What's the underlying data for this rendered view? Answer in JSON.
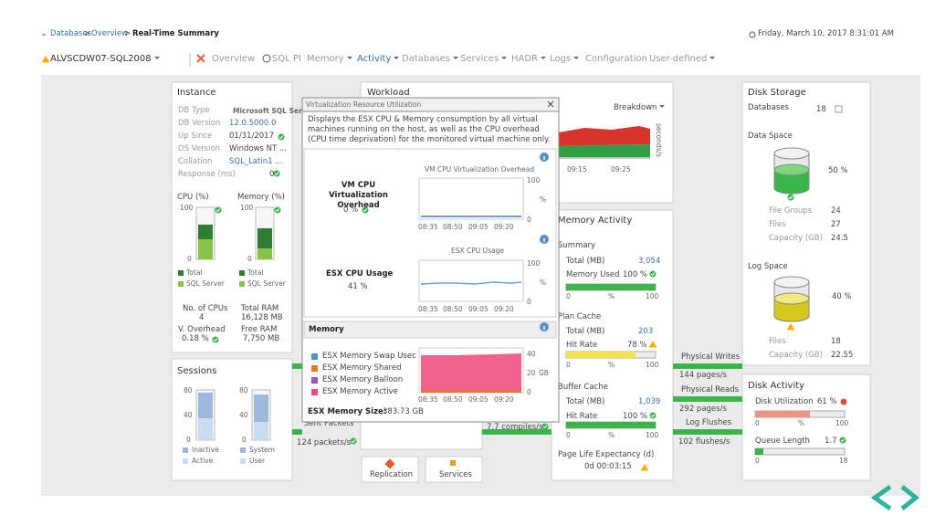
{
  "header": {
    "breadcrumb": [
      "Databases",
      "Overview",
      "Real-Time Summary"
    ],
    "separator": ">",
    "timestamp": "Friday, March 10, 2017 8:31:01 AM"
  },
  "instance_selector": "ALVSCDW07-SQL2008",
  "nav": [
    "Overview",
    "SQL PI",
    "Memory",
    "Activity",
    "Databases",
    "Services",
    "HADR",
    "Logs",
    "Configuration",
    "User-defined"
  ],
  "instance": {
    "title": "Instance",
    "rows": [
      [
        "DB Type",
        "Microsoft SQL Server"
      ],
      [
        "DB Version",
        "12.0.5000.0"
      ],
      [
        "Up Since",
        "01/31/2017"
      ],
      [
        "OS Version",
        "Windows NT ..."
      ],
      [
        "Collation",
        "SQL_Latin1 ..."
      ],
      [
        "Response (ms)",
        "0"
      ]
    ],
    "cpu_chart": {
      "title": "CPU (%)",
      "ticks": [
        "100",
        "0"
      ],
      "legend": [
        "Total",
        "SQL Server"
      ]
    },
    "memory_chart": {
      "title": "Memory (%)",
      "ticks": [
        "100",
        "0"
      ],
      "legend": [
        "Total",
        "SQL Server"
      ]
    },
    "stats": [
      [
        "No. of CPUs",
        "4"
      ],
      [
        "Total RAM",
        "16,128 MB"
      ],
      [
        "V. Overhead",
        "0.18 %"
      ],
      [
        "Free RAM",
        "7,750 MB"
      ]
    ]
  },
  "sessions": {
    "title": "Sessions",
    "left_chart": {
      "ticks": [
        "80",
        "40",
        "0"
      ],
      "legend": [
        "Inactive",
        "Active"
      ]
    },
    "right_chart": {
      "ticks": [
        "80",
        "40",
        "0"
      ],
      "legend": [
        "System",
        "User"
      ]
    }
  },
  "workload": {
    "title": "Workload",
    "menu": "Breakdown",
    "x_labels": [
      "09:15",
      "09:25"
    ],
    "y_unit": "seconds/s"
  },
  "network": {
    "sent_label": "Sent Packets",
    "sent_value": "124 packets/s",
    "compiles": "7.7 compiles/s"
  },
  "buttons": [
    "Replication",
    "Services"
  ],
  "popup": {
    "title": "Virtualization Resource Utilization",
    "description": "Displays the ESX CPU & Memory consumption by all virtual machines running on the host, as well as the CPU overhead (CPU time deprivation) for the monitored virtual machine only.",
    "vm_cpu": {
      "label": "VM CPU Virtualization Overhead",
      "value": "0 %",
      "chart_title": "VM CPU Virtualization Overhead",
      "ticks": [
        "100",
        "0"
      ],
      "unit": "%",
      "x_labels": [
        "08:35",
        "08:50",
        "09:05",
        "09:20"
      ]
    },
    "esx_cpu": {
      "label": "ESX CPU Usage",
      "value": "41 %",
      "chart_title": "ESX CPU Usage",
      "ticks": [
        "100",
        "0"
      ],
      "unit": "%",
      "x_labels": [
        "08:35",
        "08:50",
        "09:05",
        "09:20"
      ]
    },
    "memory": {
      "title": "Memory",
      "legend": [
        "ESX Memory Swap Usec",
        "ESX Memory Shared",
        "ESX Memory Balloon",
        "ESX Memory Active"
      ],
      "ticks": [
        "40",
        "20",
        "0"
      ],
      "unit": "GB",
      "x_labels": [
        "08:35",
        "08:50",
        "09:05",
        "09:20"
      ],
      "size_label": "ESX Memory Size:",
      "size_value": "383.73 GB"
    }
  },
  "memory_activity": {
    "title": "Memory Activity",
    "summary": {
      "title": "Summary",
      "rows": [
        [
          "Total (MB)",
          "3,054"
        ],
        [
          "Memory Used",
          "100 %"
        ]
      ],
      "axis": [
        "0",
        "%",
        "100"
      ]
    },
    "plan_cache": {
      "title": "Plan Cache",
      "rows": [
        [
          "Total (MB)",
          "203"
        ],
        [
          "Hit Rate",
          "78 %"
        ]
      ],
      "axis": [
        "0",
        "%",
        "100"
      ]
    },
    "buffer_cache": {
      "title": "Buffer Cache",
      "rows": [
        [
          "Total (MB)",
          "1,039"
        ],
        [
          "Hit Rate",
          "100 %"
        ]
      ],
      "axis": [
        "0",
        "%",
        "100"
      ]
    },
    "ple": {
      "label": "Page Life Expectancy (d)",
      "value": "0d 00:03:15"
    }
  },
  "disk_io": [
    [
      "Physical Writes",
      "144 pages/s"
    ],
    [
      "Physical Reads",
      "292 pages/s"
    ],
    [
      "Log Flushes",
      "102 flushes/s"
    ]
  ],
  "disk_storage": {
    "title": "Disk Storage",
    "databases": [
      "Databases",
      "18"
    ],
    "data_space": {
      "title": "Data Space",
      "percent": "50 %",
      "rows": [
        [
          "File Groups",
          "24"
        ],
        [
          "Files",
          "27"
        ],
        [
          "Capacity (GB)",
          "24.5"
        ]
      ]
    },
    "log_space": {
      "title": "Log Space",
      "percent": "40 %",
      "rows": [
        [
          "Files",
          "18"
        ],
        [
          "Capacity (GB)",
          "22.55"
        ]
      ]
    }
  },
  "disk_activity": {
    "title": "Disk Activity",
    "utilization": [
      "Disk Utilization",
      "61 %"
    ],
    "util_axis": [
      "0",
      "%",
      "100"
    ],
    "queue": [
      "Queue Length",
      "1.7"
    ],
    "queue_axis": [
      "0",
      "18"
    ]
  }
}
